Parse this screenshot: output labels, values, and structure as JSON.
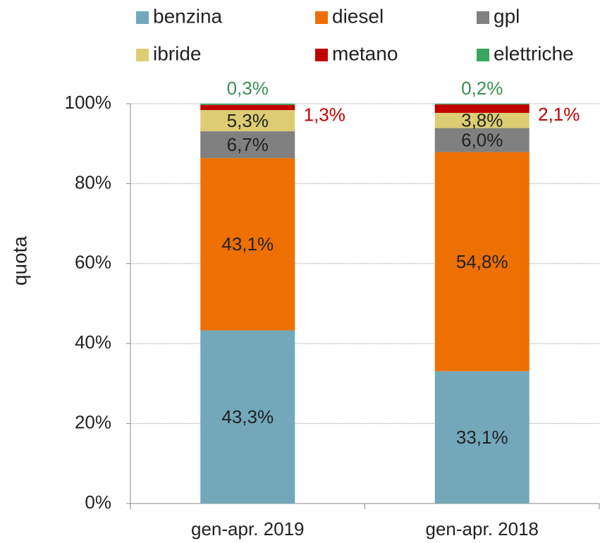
{
  "chart_data": {
    "type": "stacked_bar",
    "y_label": "quota",
    "categories": [
      "gen-apr. 2019",
      "gen-apr. 2018"
    ],
    "series": [
      {
        "name": "benzina",
        "color": "#72a8ba",
        "values": [
          43.3,
          33.1
        ],
        "value_labels": [
          "43,3%",
          "33,1%"
        ]
      },
      {
        "name": "diesel",
        "color": "#ed7000",
        "values": [
          43.1,
          54.8
        ],
        "value_labels": [
          "43,1%",
          "54,8%"
        ]
      },
      {
        "name": "gpl",
        "color": "#808080",
        "values": [
          6.7,
          6.0
        ],
        "value_labels": [
          "6,7%",
          "6,0%"
        ]
      },
      {
        "name": "ibride",
        "color": "#dccd73",
        "values": [
          5.3,
          3.8
        ],
        "value_labels": [
          "5,3%",
          "3,8%"
        ]
      },
      {
        "name": "metano",
        "color": "#c00000",
        "values": [
          1.3,
          2.1
        ],
        "value_labels": [
          "1,3%",
          "2,1%"
        ]
      },
      {
        "name": "elettriche",
        "color": "#3aa55f",
        "values": [
          0.3,
          0.2
        ],
        "value_labels": [
          "0,3%",
          "0,2%"
        ]
      }
    ],
    "ylim": [
      0,
      100
    ],
    "yticks": [
      {
        "value": 0,
        "label": "0%"
      },
      {
        "value": 20,
        "label": "20%"
      },
      {
        "value": 40,
        "label": "40%"
      },
      {
        "value": 60,
        "label": "60%"
      },
      {
        "value": 80,
        "label": "80%"
      },
      {
        "value": 100,
        "label": "100%"
      }
    ],
    "grid": true
  }
}
